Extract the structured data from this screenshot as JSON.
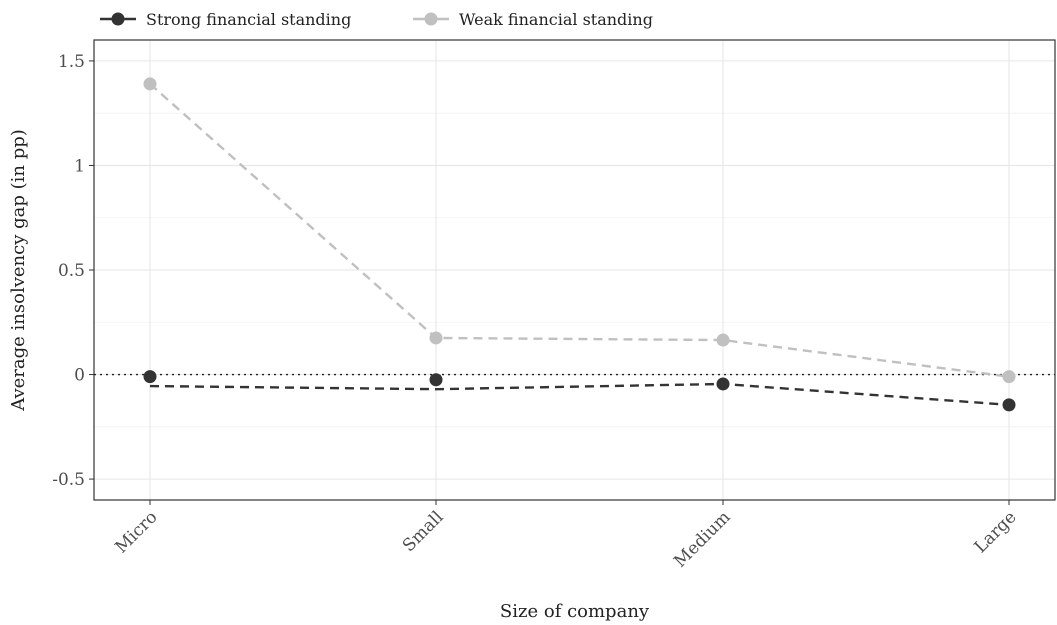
{
  "chart_data": {
    "type": "line",
    "title": "",
    "xlabel": "Size of company",
    "ylabel": "Average insolvency gap (in pp)",
    "categories": [
      "Micro",
      "Small",
      "Medium",
      "Large"
    ],
    "ylim": [
      -0.6,
      1.6
    ],
    "yticks": [
      -0.5,
      0,
      0.5,
      1,
      1.5
    ],
    "ytick_labels": [
      "-0.5",
      "0",
      "0.5",
      "1",
      "1.5"
    ],
    "grid": true,
    "legend_position": "top",
    "reference_line": {
      "y": 0,
      "style": "dotted"
    },
    "series": [
      {
        "name": "Strong financial standing",
        "color": "#333333",
        "points": [
          -0.01,
          -0.025,
          -0.045,
          -0.145
        ],
        "trend_line": [
          -0.055,
          -0.07,
          -0.045,
          -0.145
        ]
      },
      {
        "name": "Weak financial standing",
        "color": "#c0c0c0",
        "points": [
          1.39,
          0.175,
          0.165,
          -0.01
        ],
        "trend_line": [
          1.39,
          0.175,
          0.165,
          -0.01
        ]
      }
    ]
  }
}
